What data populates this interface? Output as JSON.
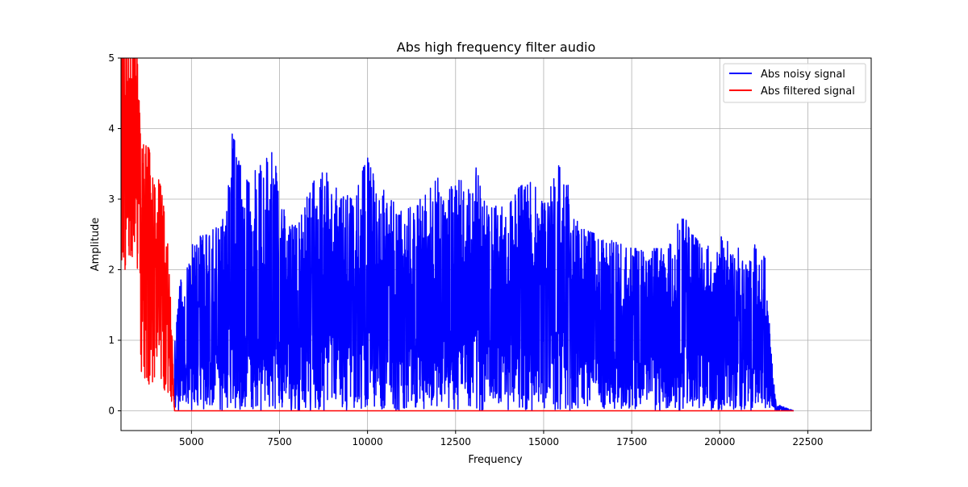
{
  "chart_data": {
    "type": "line",
    "title": "Abs high frequency filter audio",
    "xlabel": "Frequency",
    "ylabel": "Amplitude",
    "xlim": [
      3000,
      24300
    ],
    "ylim": [
      -0.28,
      5
    ],
    "grid": true,
    "legend_position": "top-right",
    "xticks": [
      5000,
      7500,
      10000,
      12500,
      15000,
      17500,
      20000,
      22500
    ],
    "xtick_labels": [
      "5000",
      "7500",
      "10000",
      "12500",
      "15000",
      "17500",
      "20000",
      "22500"
    ],
    "yticks": [
      0,
      1,
      2,
      3,
      4,
      5
    ],
    "ytick_labels": [
      "0",
      "1",
      "2",
      "3",
      "4",
      "5"
    ],
    "series": [
      {
        "name": "Abs noisy signal",
        "color": "#0000ff",
        "description_points": {
          "x": [
            4520,
            4600,
            4700,
            5000,
            5500,
            6000,
            6100,
            6500,
            7000,
            7350,
            7500,
            8000,
            8600,
            9000,
            9500,
            10000,
            10500,
            11000,
            11500,
            12000,
            12500,
            13000,
            13500,
            14000,
            14600,
            15000,
            15500,
            16000,
            16500,
            17000,
            17500,
            18000,
            18500,
            18900,
            19500,
            20000,
            20500,
            21000,
            21300,
            21400,
            21500,
            21600,
            22100
          ],
          "y": [
            0.9,
            1.55,
            1.9,
            2.45,
            2.5,
            2.8,
            4.07,
            3.3,
            3.5,
            3.7,
            2.9,
            2.7,
            3.4,
            3.35,
            3.0,
            3.62,
            3.1,
            2.8,
            3.0,
            3.3,
            3.2,
            3.55,
            2.9,
            2.9,
            3.42,
            2.9,
            3.57,
            2.6,
            2.5,
            2.4,
            2.3,
            2.3,
            2.3,
            2.83,
            2.3,
            2.48,
            2.3,
            2.4,
            2.15,
            1.33,
            0.7,
            0.1,
            0.0
          ]
        }
      },
      {
        "name": "Abs filtered signal",
        "color": "#ff0000",
        "description_points": {
          "x": [
            3000,
            3200,
            3400,
            3600,
            3800,
            3900,
            4100,
            4300,
            4450,
            4520,
            22100
          ],
          "y": [
            5.0,
            5.0,
            5.0,
            3.8,
            3.72,
            3.3,
            3.27,
            2.6,
            1.2,
            0.0,
            0.0
          ]
        }
      }
    ]
  }
}
